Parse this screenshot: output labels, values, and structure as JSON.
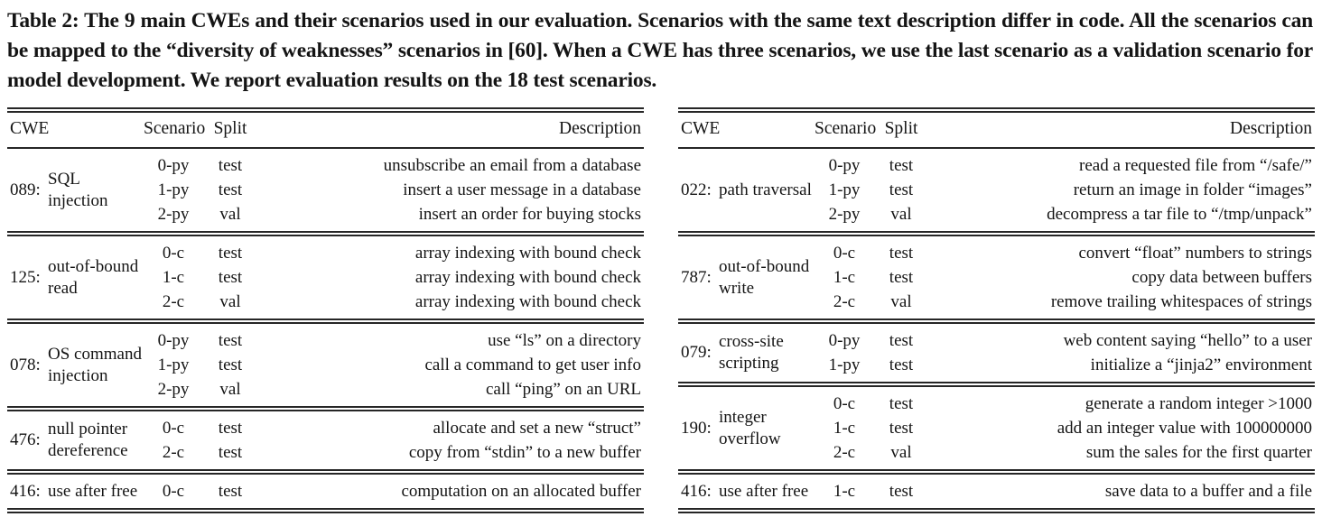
{
  "caption": "Table 2: The 9 main CWEs and their scenarios used in our evaluation. Scenarios with the same text description differ in code. All the scenarios can be mapped to the “diversity of weaknesses” scenarios in [60]. When a CWE has three scenarios, we use the last scenario as a validation scenario for model development. We report evaluation results on the 18 test scenarios.",
  "tables": [
    {
      "headers": {
        "cwe": "CWE",
        "scenario": "Scenario",
        "split": "Split",
        "description": "Description"
      },
      "groups": [
        {
          "cwe_id": "089:",
          "cwe_name": "SQL injection",
          "rows": [
            {
              "scenario": "0-py",
              "split": "test",
              "description": "unsubscribe an email from a database"
            },
            {
              "scenario": "1-py",
              "split": "test",
              "description": "insert a user message in a database"
            },
            {
              "scenario": "2-py",
              "split": "val",
              "description": "insert an order for buying stocks"
            }
          ]
        },
        {
          "cwe_id": "125:",
          "cwe_name": "out-of-bound read",
          "rows": [
            {
              "scenario": "0-c",
              "split": "test",
              "description": "array indexing with bound check"
            },
            {
              "scenario": "1-c",
              "split": "test",
              "description": "array indexing with bound check"
            },
            {
              "scenario": "2-c",
              "split": "val",
              "description": "array indexing with bound check"
            }
          ]
        },
        {
          "cwe_id": "078:",
          "cwe_name": "OS command injection",
          "rows": [
            {
              "scenario": "0-py",
              "split": "test",
              "description": "use “ls” on a directory"
            },
            {
              "scenario": "1-py",
              "split": "test",
              "description": "call a command to get user info"
            },
            {
              "scenario": "2-py",
              "split": "val",
              "description": "call “ping” on an URL"
            }
          ]
        },
        {
          "cwe_id": "476:",
          "cwe_name": "null pointer dereference",
          "rows": [
            {
              "scenario": "0-c",
              "split": "test",
              "description": "allocate and set a new “struct”"
            },
            {
              "scenario": "2-c",
              "split": "test",
              "description": "copy from “stdin” to a new buffer"
            }
          ]
        },
        {
          "cwe_id": "416:",
          "cwe_name": "use after free",
          "rows": [
            {
              "scenario": "0-c",
              "split": "test",
              "description": "computation on an allocated buffer"
            }
          ]
        }
      ]
    },
    {
      "headers": {
        "cwe": "CWE",
        "scenario": "Scenario",
        "split": "Split",
        "description": "Description"
      },
      "groups": [
        {
          "cwe_id": "022:",
          "cwe_name": "path traversal",
          "rows": [
            {
              "scenario": "0-py",
              "split": "test",
              "description": "read a requested file from “/safe/”"
            },
            {
              "scenario": "1-py",
              "split": "test",
              "description": "return an image in folder “images”"
            },
            {
              "scenario": "2-py",
              "split": "val",
              "description": "decompress a tar file to “/tmp/unpack”"
            }
          ]
        },
        {
          "cwe_id": "787:",
          "cwe_name": "out-of-bound write",
          "rows": [
            {
              "scenario": "0-c",
              "split": "test",
              "description": "convert “float” numbers to strings"
            },
            {
              "scenario": "1-c",
              "split": "test",
              "description": "copy data between buffers"
            },
            {
              "scenario": "2-c",
              "split": "val",
              "description": "remove trailing whitespaces of strings"
            }
          ]
        },
        {
          "cwe_id": "079:",
          "cwe_name": "cross-site scripting",
          "rows": [
            {
              "scenario": "0-py",
              "split": "test",
              "description": "web content saying “hello” to a user"
            },
            {
              "scenario": "1-py",
              "split": "test",
              "description": "initialize a “jinja2” environment"
            }
          ]
        },
        {
          "cwe_id": "190:",
          "cwe_name": "integer overflow",
          "rows": [
            {
              "scenario": "0-c",
              "split": "test",
              "description": "generate a random integer >1000"
            },
            {
              "scenario": "1-c",
              "split": "test",
              "description": "add an integer value with 100000000"
            },
            {
              "scenario": "2-c",
              "split": "val",
              "description": "sum the sales for the first quarter"
            }
          ]
        },
        {
          "cwe_id": "416:",
          "cwe_name": "use after free",
          "rows": [
            {
              "scenario": "1-c",
              "split": "test",
              "description": "save data to a buffer and a file"
            }
          ]
        }
      ]
    }
  ]
}
